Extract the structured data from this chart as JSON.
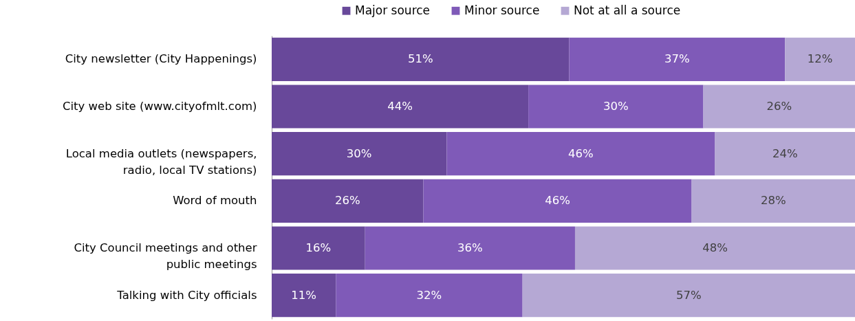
{
  "chart_data": {
    "type": "bar",
    "orientation": "horizontal",
    "stacked": true,
    "legend": "top",
    "tick_labels": "y",
    "xlim": [
      0,
      100
    ],
    "categories": [
      "City newsletter (City Happenings)",
      "City web site (www.cityofmlt.com)",
      "Local media outlets (newspapers, radio, local TV stations)",
      "Word of mouth",
      "City Council meetings and other public meetings",
      "Talking with City officials"
    ],
    "series": [
      {
        "name": "Major source",
        "color": "#68489a",
        "values": [
          51,
          44,
          30,
          26,
          16,
          11
        ],
        "value_labels": [
          "51%",
          "44%",
          "30%",
          "26%",
          "16%",
          "11%"
        ]
      },
      {
        "name": "Minor source",
        "color": "#7f5ab8",
        "values": [
          37,
          30,
          46,
          46,
          36,
          32
        ],
        "value_labels": [
          "37%",
          "30%",
          "46%",
          "46%",
          "36%",
          "32%"
        ]
      },
      {
        "name": "Not at all a source",
        "color": "#b5a8d4",
        "values": [
          12,
          26,
          24,
          28,
          48,
          57
        ],
        "value_labels": [
          "12%",
          "26%",
          "24%",
          "28%",
          "48%",
          "57%"
        ]
      }
    ]
  }
}
